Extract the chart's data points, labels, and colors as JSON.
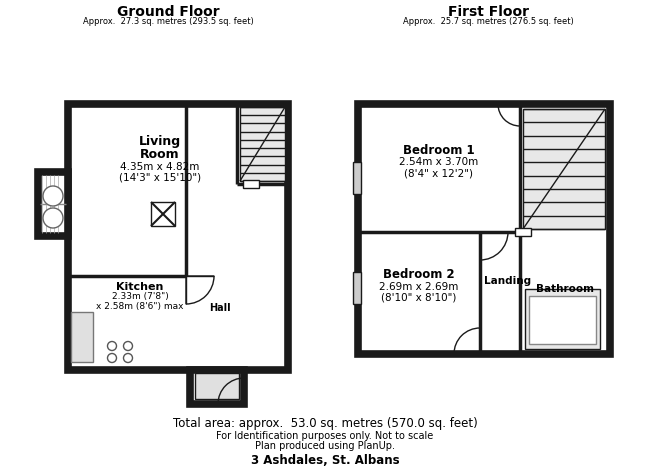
{
  "bg_color": "#ffffff",
  "wall_color": "#1a1a1a",
  "title_ground": "Ground Floor",
  "subtitle_ground": "Approx.  27.3 sq. metres (293.5 sq. feet)",
  "title_first": "First Floor",
  "subtitle_first": "Approx.  25.7 sq. metres (276.5 sq. feet)",
  "lr_line1": "Living",
  "lr_line2": "Room",
  "lr_line3": "4.35m x 4.82m",
  "lr_line4": "(14'3\" x 15'10\")",
  "kit_line1": "Kitchen",
  "kit_line2": "2.33m (7'8\")",
  "kit_line3": "x 2.58m (8'6\") max",
  "hall_label": "Hall",
  "b1_line1": "Bedroom 1",
  "b1_line2": "2.54m x 3.70m",
  "b1_line3": "(8'4\" x 12'2\")",
  "b2_line1": "Bedroom 2",
  "b2_line2": "2.69m x 2.69m",
  "b2_line3": "(8'10\" x 8'10\")",
  "landing_label": "Landing",
  "bath_label": "Bathroom",
  "footer_line1": "Total area: approx.  53.0 sq. metres (570.0 sq. feet)",
  "footer_line2": "For Identification purposes only. Not to scale",
  "footer_line3": "Plan produced using PlanUp.",
  "footer_bold": "3 Ashdales, St. Albans"
}
